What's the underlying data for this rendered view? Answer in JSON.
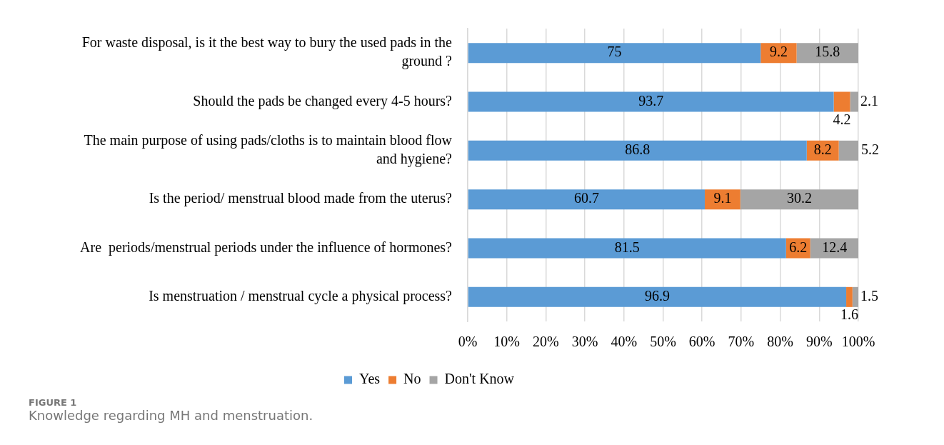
{
  "chart_data": {
    "type": "bar",
    "orientation": "horizontal",
    "stacked": true,
    "categories": [
      "For waste disposal, is it the best way to bury the used pads in the ground ?",
      "Should the pads be changed every 4-5 hours?",
      "The main purpose of using pads/cloths is to maintain blood flow and hygiene?",
      "Is the period/ menstrual blood made from the uterus?",
      "Are  periods/menstrual periods under the influence of hormones?",
      "Is menstruation / menstrual cycle a physical process?"
    ],
    "series": [
      {
        "name": "Yes",
        "color": "#5b9bd5",
        "values": [
          75,
          93.7,
          86.8,
          60.7,
          81.5,
          96.9
        ]
      },
      {
        "name": "No",
        "color": "#ed7d31",
        "values": [
          9.2,
          4.2,
          8.2,
          9.1,
          6.2,
          1.6
        ]
      },
      {
        "name": "Don't Know",
        "color": "#a5a5a5",
        "values": [
          15.8,
          2.1,
          5.2,
          30.2,
          12.4,
          1.5
        ]
      }
    ],
    "xlim": [
      0,
      100
    ],
    "xticks": [
      {
        "value": 0,
        "label": "0%"
      },
      {
        "value": 10,
        "label": "10%"
      },
      {
        "value": 20,
        "label": "20%"
      },
      {
        "value": 30,
        "label": "30%"
      },
      {
        "value": 40,
        "label": "40%"
      },
      {
        "value": 50,
        "label": "50%"
      },
      {
        "value": 60,
        "label": "60%"
      },
      {
        "value": 70,
        "label": "70%"
      },
      {
        "value": 80,
        "label": "80%"
      },
      {
        "value": 90,
        "label": "90%"
      },
      {
        "value": 100,
        "label": "100%"
      }
    ],
    "grid": "x",
    "legend": "bottom",
    "data_labels": true,
    "annotations": [
      "FIGURE 1",
      "Knowledge regarding MH and menstruation."
    ]
  }
}
